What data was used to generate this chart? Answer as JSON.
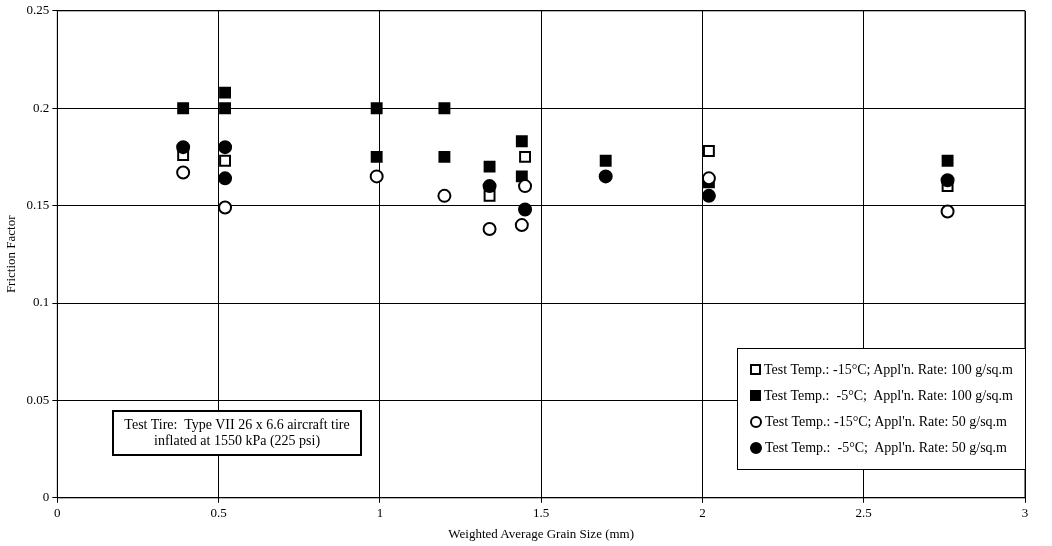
{
  "chart_data": {
    "type": "scatter",
    "xlabel": "Weighted Average Grain Size (mm)",
    "ylabel": "Friction Factor",
    "xlim": [
      0,
      3
    ],
    "xticks": [
      0,
      0.5,
      1,
      1.5,
      2,
      2.5,
      3
    ],
    "ylim": [
      0,
      0.25
    ],
    "yticks": [
      0,
      0.05,
      0.1,
      0.15,
      0.2,
      0.25
    ],
    "grid": true,
    "legend": "bottom right",
    "annotations": [
      "Test Tire:  Type VII 26 x 6.6 aircraft tire\ninflated at 1550 kPa (225 psi)"
    ],
    "series": [
      {
        "name": "Test Temp.: -15°C; Appl'n. Rate: 100 g/sq.m",
        "color": "#ffffff",
        "marker": "square",
        "x": [
          0.39,
          0.52,
          1.34,
          1.45,
          2.02,
          2.76
        ],
        "values": [
          0.176,
          0.173,
          0.155,
          0.175,
          0.178,
          0.16
        ]
      },
      {
        "name": "Test Temp.:  -5°C;  Appl'n. Rate: 100 g/sq.m",
        "color": "#000000",
        "marker": "square",
        "x": [
          0.39,
          0.52,
          0.52,
          0.99,
          0.99,
          1.2,
          1.2,
          1.34,
          1.44,
          1.44,
          1.7,
          2.02,
          2.76
        ],
        "values": [
          0.2,
          0.208,
          0.2,
          0.2,
          0.175,
          0.2,
          0.175,
          0.17,
          0.183,
          0.165,
          0.173,
          0.162,
          0.173
        ]
      },
      {
        "name": "Test Temp.: -15°C; Appl'n. Rate: 50 g/sq.m",
        "color": "#ffffff",
        "marker": "circle",
        "x": [
          0.39,
          0.52,
          0.99,
          1.2,
          1.34,
          1.44,
          1.45,
          2.02,
          2.76
        ],
        "values": [
          0.167,
          0.149,
          0.165,
          0.155,
          0.138,
          0.14,
          0.16,
          0.164,
          0.147
        ]
      },
      {
        "name": "Test Temp.:  -5°C;  Appl'n. Rate: 50 g/sq.m",
        "color": "#000000",
        "marker": "circle",
        "x": [
          0.39,
          0.52,
          0.52,
          1.34,
          1.45,
          1.7,
          2.02,
          2.76
        ],
        "values": [
          0.18,
          0.18,
          0.164,
          0.16,
          0.148,
          0.165,
          0.155,
          0.163
        ]
      }
    ]
  }
}
